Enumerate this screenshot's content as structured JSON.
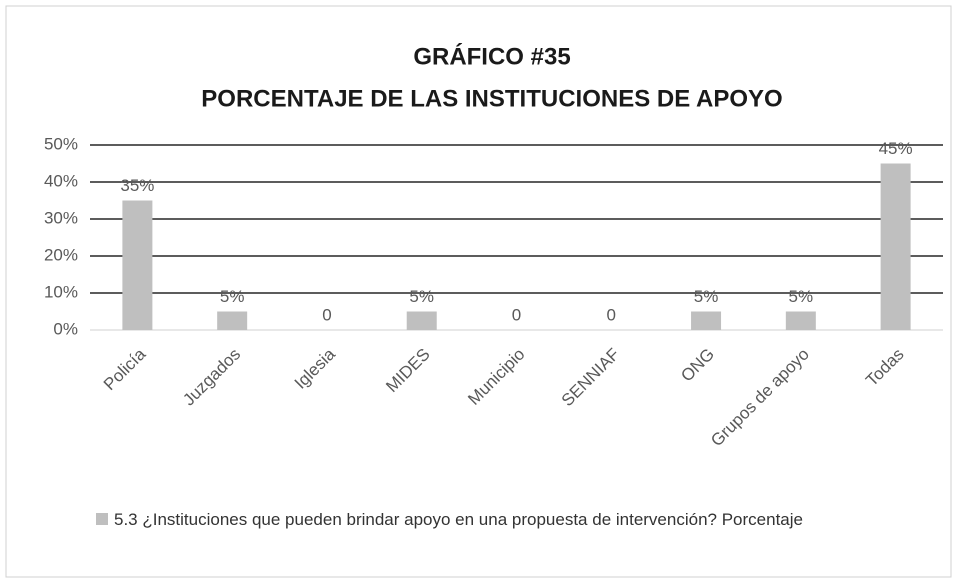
{
  "chart_data": {
    "type": "bar",
    "title": "GRÁFICO #35",
    "subtitle": "PORCENTAJE DE LAS INSTITUCIONES DE APOYO",
    "categories": [
      "Policía",
      "Juzgados",
      "Iglesia",
      "MIDES",
      "Municipio",
      "SENNIAF",
      "ONG",
      "Grupos de apoyo",
      "Todas"
    ],
    "series": [
      {
        "name": "5.3 ¿Instituciones que pueden brindar apoyo en una propuesta de intervención? Porcentaje",
        "color": "#bfbfbf",
        "values": [
          35,
          5,
          0,
          5,
          0,
          0,
          5,
          5,
          45
        ],
        "value_labels": [
          "35%",
          "5%",
          "0",
          "5%",
          "0",
          "0",
          "5%",
          "5%",
          "45%"
        ]
      }
    ],
    "ylim": [
      0,
      50
    ],
    "yticks": [
      {
        "value": 0,
        "label": "0%"
      },
      {
        "value": 10,
        "label": "10%"
      },
      {
        "value": 20,
        "label": "20%"
      },
      {
        "value": 30,
        "label": "30%"
      },
      {
        "value": 40,
        "label": "40%"
      },
      {
        "value": 50,
        "label": "50%"
      }
    ],
    "grid": true,
    "legend": "bottom"
  }
}
